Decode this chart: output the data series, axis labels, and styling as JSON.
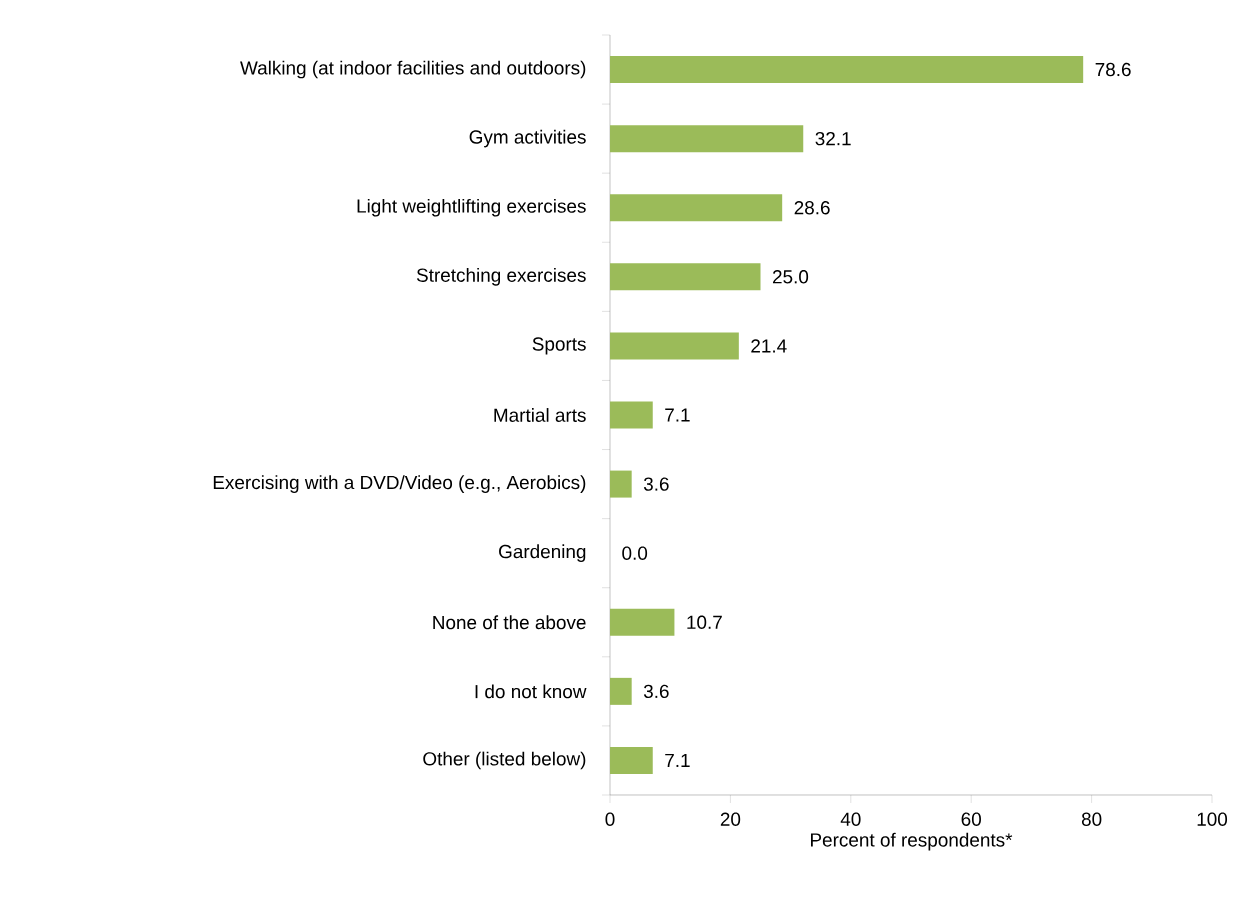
{
  "chart_data": {
    "type": "bar",
    "orientation": "horizontal",
    "xlabel": "Percent of respondents*",
    "categories": [
      "Walking (at indoor facilities and outdoors)",
      "Gym activities",
      "Light weightlifting exercises",
      "Stretching exercises",
      "Sports",
      "Martial arts",
      "Exercising with a DVD/Video (e.g., Aerobics)",
      "Gardening",
      "None of the above",
      "I do not know",
      "Other (listed below)"
    ],
    "values": [
      78.6,
      32.1,
      28.6,
      25.0,
      21.4,
      7.1,
      3.6,
      0.0,
      10.7,
      3.6,
      7.1
    ],
    "value_labels": [
      "78.6",
      "32.1",
      "28.6",
      "25.0",
      "21.4",
      "7.1",
      "3.6",
      "0.0",
      "10.7",
      "3.6",
      "7.1"
    ],
    "color": "#9bbb59",
    "xlim": [
      0,
      100
    ],
    "xticks": [
      0,
      20,
      40,
      60,
      80,
      100
    ]
  }
}
